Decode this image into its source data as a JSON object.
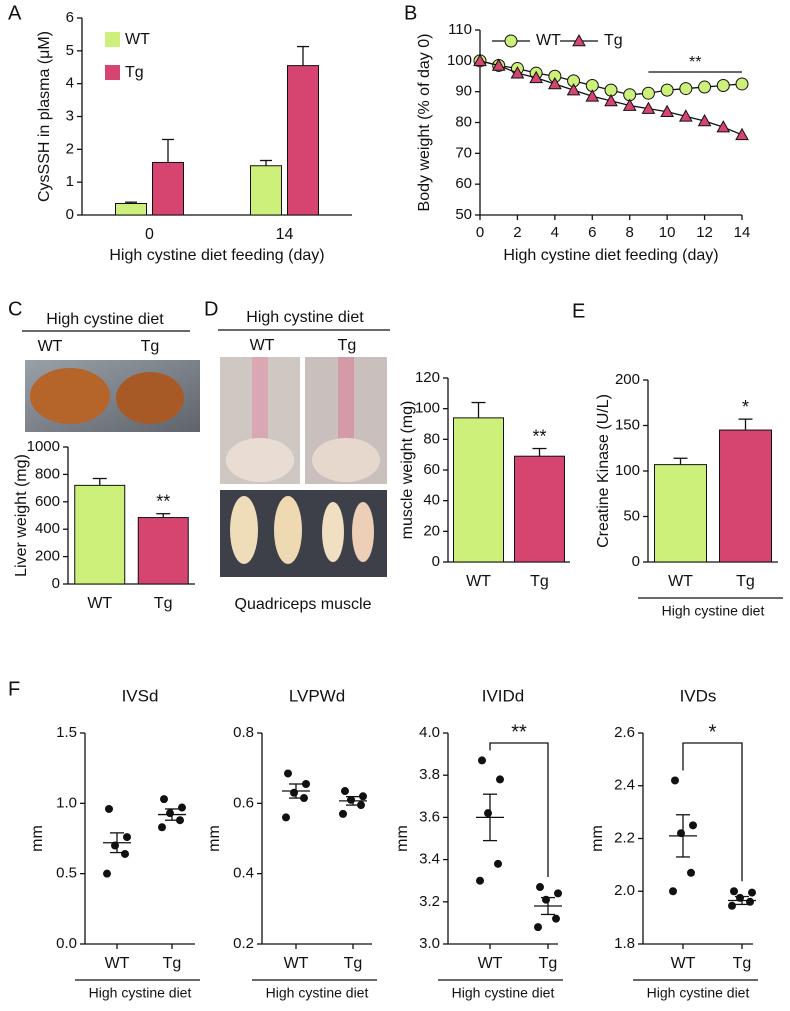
{
  "chart_data": [
    {
      "type": "bar",
      "panel": "A",
      "ylabel": "CysSSH in plasma (μM)",
      "xlabel": "High cystine diet feeding (day)",
      "categories": [
        "0",
        "14"
      ],
      "series": [
        {
          "name": "WT",
          "color": "#ccf07a",
          "values": [
            0.35,
            1.5
          ],
          "errors": [
            0.04,
            0.16
          ]
        },
        {
          "name": "Tg",
          "color": "#d6456f",
          "values": [
            1.6,
            4.55
          ],
          "errors": [
            0.7,
            0.58
          ]
        }
      ],
      "ylim": [
        0,
        6
      ],
      "yticks": [
        0,
        1,
        2,
        3,
        4,
        5,
        6
      ]
    },
    {
      "type": "line",
      "panel": "B",
      "ylabel": "Body weight  (% of day 0)",
      "xlabel": "High cystine diet feeding (day)",
      "x": [
        0,
        1,
        2,
        3,
        4,
        5,
        6,
        7,
        8,
        9,
        10,
        11,
        12,
        13,
        14
      ],
      "series": [
        {
          "name": "WT",
          "color": "#ccf07a",
          "marker": "circle",
          "values": [
            100,
            98.5,
            97.5,
            96,
            95,
            93.5,
            92,
            90.5,
            89,
            89.5,
            90.5,
            91,
            91.5,
            92,
            92.5
          ]
        },
        {
          "name": "Tg",
          "color": "#d6456f",
          "marker": "triangle",
          "values": [
            100,
            98.5,
            96,
            94.5,
            92.5,
            90.5,
            88.5,
            87,
            85.5,
            84.5,
            83.5,
            82,
            80.5,
            78.5,
            76
          ]
        }
      ],
      "annotation": {
        "text": "**",
        "x": [
          9,
          14
        ]
      },
      "xlim": [
        0,
        14
      ],
      "xticks": [
        0,
        2,
        4,
        6,
        8,
        10,
        12,
        14
      ],
      "ylim": [
        50,
        110
      ],
      "yticks": [
        50,
        60,
        70,
        80,
        90,
        100,
        110
      ]
    },
    {
      "type": "bar",
      "panel": "C",
      "photo_title": "High cystine diet",
      "photo_labels": [
        "WT",
        "Tg"
      ],
      "ylabel": "Liver weight (mg)",
      "categories": [
        "WT",
        "Tg"
      ],
      "values": [
        720,
        485
      ],
      "errors": [
        50,
        28
      ],
      "colors": [
        "#ccf07a",
        "#d6456f"
      ],
      "significance": "**",
      "ylim": [
        0,
        1000
      ],
      "yticks": [
        0,
        200,
        400,
        600,
        800,
        1000
      ]
    },
    {
      "type": "bar",
      "panel": "D",
      "photo_title": "High cystine diet",
      "photo_labels": [
        "WT",
        "Tg"
      ],
      "photo_caption": "Quadriceps muscle",
      "ylabel": "muscle weight (mg)",
      "categories": [
        "WT",
        "Tg"
      ],
      "values": [
        94,
        69
      ],
      "errors": [
        10,
        5
      ],
      "colors": [
        "#ccf07a",
        "#d6456f"
      ],
      "significance": "**",
      "ylim": [
        0,
        120
      ],
      "yticks": [
        0,
        20,
        40,
        60,
        80,
        100,
        120
      ]
    },
    {
      "type": "bar",
      "panel": "E",
      "ylabel": "Creatine Kinase (U/L)",
      "group_label": "High cystine diet",
      "categories": [
        "WT",
        "Tg"
      ],
      "values": [
        107,
        145
      ],
      "errors": [
        7,
        12
      ],
      "colors": [
        "#ccf07a",
        "#d6456f"
      ],
      "significance": "*",
      "ylim": [
        0,
        200
      ],
      "yticks": [
        0,
        50,
        100,
        150,
        200
      ]
    },
    {
      "type": "dot",
      "panel": "F",
      "title": "IVSd",
      "ylabel": "mm",
      "group_label": "High cystine diet",
      "categories": [
        "WT",
        "Tg"
      ],
      "groups": [
        {
          "values": [
            0.96,
            0.76,
            0.7,
            0.64,
            0.5
          ],
          "mean": 0.72,
          "sem": 0.07
        },
        {
          "values": [
            1.03,
            0.97,
            0.93,
            0.88,
            0.83
          ],
          "mean": 0.92,
          "sem": 0.04
        }
      ],
      "ylim": [
        0,
        1.5
      ],
      "yticks": [
        {
          "value": 0,
          "label": "0.0"
        },
        0.5,
        {
          "value": 1,
          "label": "1.0"
        },
        1.5
      ]
    },
    {
      "type": "dot",
      "title": "LVPWd",
      "ylabel": "mm",
      "group_label": "High cystine diet",
      "categories": [
        "WT",
        "Tg"
      ],
      "groups": [
        {
          "values": [
            0.685,
            0.655,
            0.63,
            0.615,
            0.56
          ],
          "mean": 0.635,
          "sem": 0.02
        },
        {
          "values": [
            0.635,
            0.62,
            0.61,
            0.595,
            0.57
          ],
          "mean": 0.607,
          "sem": 0.012
        }
      ],
      "ylim": [
        0.2,
        0.8
      ],
      "yticks": [
        0.2,
        0.4,
        0.6,
        0.8
      ]
    },
    {
      "type": "dot",
      "title": "IVIDd",
      "ylabel": "mm",
      "group_label": "High cystine diet",
      "categories": [
        "WT",
        "Tg"
      ],
      "groups": [
        {
          "values": [
            3.87,
            3.78,
            3.62,
            3.38,
            3.3
          ],
          "mean": 3.6,
          "sem": 0.11
        },
        {
          "values": [
            3.27,
            3.24,
            3.21,
            3.12,
            3.08
          ],
          "mean": 3.18,
          "sem": 0.04
        }
      ],
      "significance": "**",
      "ylim": [
        3,
        4
      ],
      "yticks": [
        {
          "value": 3,
          "label": "3.0"
        },
        3.2,
        3.4,
        3.6,
        3.8,
        {
          "value": 4,
          "label": "4.0"
        }
      ]
    },
    {
      "type": "dot",
      "title": "IVDs",
      "ylabel": "mm",
      "group_label": "High cystine diet",
      "categories": [
        "WT",
        "Tg"
      ],
      "groups": [
        {
          "values": [
            2.42,
            2.25,
            2.22,
            2.07,
            2.0
          ],
          "mean": 2.21,
          "sem": 0.08
        },
        {
          "values": [
            2.0,
            1.995,
            1.975,
            1.96,
            1.945
          ],
          "mean": 1.965,
          "sem": 0.015
        }
      ],
      "significance": "*",
      "ylim": [
        1.8,
        2.6
      ],
      "yticks": [
        1.8,
        {
          "value": 2,
          "label": "2.0"
        },
        2.2,
        2.4,
        2.6
      ]
    }
  ]
}
